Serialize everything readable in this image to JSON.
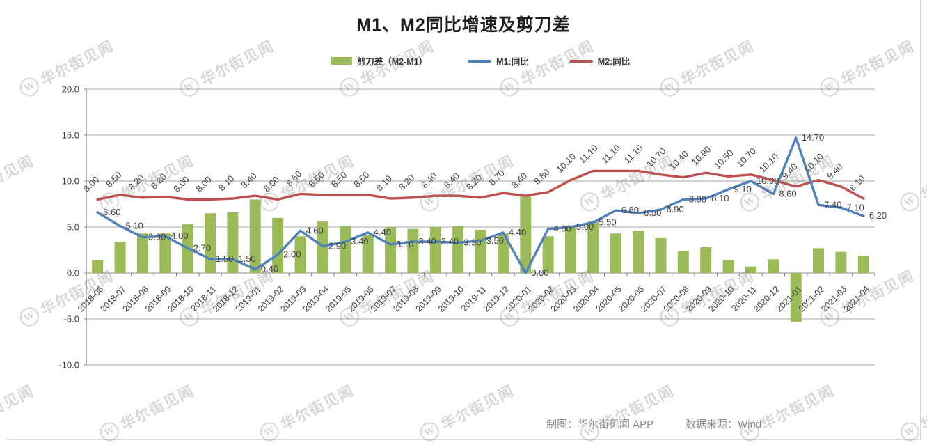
{
  "header": {
    "title": "M1、M2同比增速及剪刀差"
  },
  "legend": [
    {
      "label": "剪刀差（M2-M1）",
      "type": "bar",
      "color": "#9BBB59"
    },
    {
      "label": "M1:同比",
      "type": "line",
      "color": "#4F81BD"
    },
    {
      "label": "M2:同比",
      "type": "line",
      "color": "#C0504D"
    }
  ],
  "footer": {
    "credit": "制图：华尔街见闻 APP",
    "source": "数据来源：Wind"
  },
  "watermark": {
    "logo": "W",
    "text": "华尔街见闻"
  },
  "chart_data": {
    "type": "bar",
    "title": "M1、M2同比增速及剪刀差",
    "xlabel": "",
    "ylabel": "",
    "ylim": [
      -10,
      20
    ],
    "yticks": [
      20.0,
      15.0,
      10.0,
      5.0,
      0.0,
      -5.0,
      -10.0
    ],
    "grid": true,
    "legend_position": "top",
    "categories": [
      "2018-06",
      "2018-07",
      "2018-08",
      "2018-09",
      "2018-10",
      "2018-11",
      "2018-12",
      "2019-01",
      "2019-02",
      "2019-03",
      "2019-04",
      "2019-05",
      "2019-06",
      "2019-07",
      "2019-08",
      "2019-09",
      "2019-10",
      "2019-11",
      "2019-12",
      "2020-01",
      "2020-02",
      "2020-03",
      "2020-04",
      "2020-05",
      "2020-06",
      "2020-07",
      "2020-08",
      "2020-09",
      "2020-10",
      "2020-11",
      "2020-12",
      "2021-01",
      "2021-02",
      "2021-03",
      "2021-04"
    ],
    "series": [
      {
        "name": "剪刀差（M2-M1）",
        "type": "bar",
        "color": "#9BBB59",
        "values": [
          1.4,
          3.4,
          4.3,
          4.3,
          5.3,
          6.5,
          6.6,
          8.0,
          6.0,
          4.0,
          5.6,
          5.1,
          4.1,
          5.0,
          4.8,
          5.0,
          5.1,
          4.7,
          4.3,
          8.4,
          4.0,
          5.1,
          5.6,
          4.3,
          4.6,
          3.8,
          2.4,
          2.8,
          1.4,
          0.7,
          1.5,
          -5.3,
          2.7,
          2.3,
          1.9
        ]
      },
      {
        "name": "M1:同比",
        "type": "line",
        "color": "#4F81BD",
        "label_style": "horizontal",
        "values": [
          6.6,
          5.1,
          3.9,
          4.0,
          2.7,
          1.5,
          1.5,
          0.4,
          2.0,
          4.6,
          2.9,
          3.4,
          4.4,
          3.1,
          3.4,
          3.4,
          3.3,
          3.5,
          4.4,
          0.0,
          4.8,
          5.0,
          5.5,
          6.8,
          6.5,
          6.9,
          8.0,
          8.1,
          9.1,
          10.0,
          8.6,
          14.7,
          7.4,
          7.1,
          6.2
        ]
      },
      {
        "name": "M2:同比",
        "type": "line",
        "color": "#C0504D",
        "label_style": "rotated45",
        "values": [
          8.0,
          8.5,
          8.2,
          8.3,
          8.0,
          8.0,
          8.1,
          8.4,
          8.0,
          8.6,
          8.5,
          8.5,
          8.5,
          8.1,
          8.2,
          8.4,
          8.4,
          8.2,
          8.7,
          8.4,
          8.8,
          10.1,
          11.1,
          11.1,
          11.1,
          10.7,
          10.4,
          10.9,
          10.5,
          10.7,
          10.1,
          9.4,
          10.1,
          9.4,
          8.1
        ]
      }
    ]
  }
}
